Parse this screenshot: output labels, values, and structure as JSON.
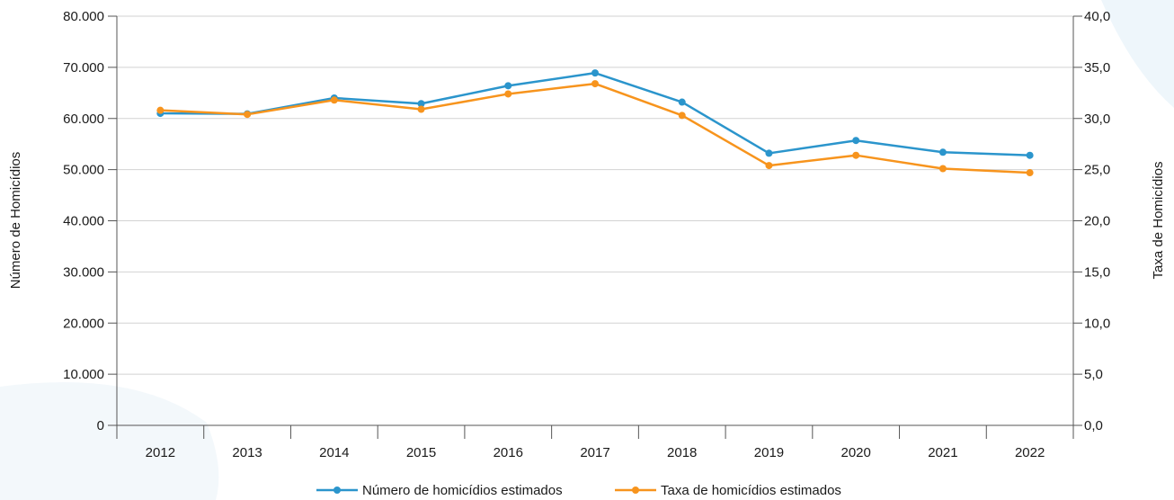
{
  "chart_data": {
    "type": "line",
    "categories": [
      "2012",
      "2013",
      "2014",
      "2015",
      "2016",
      "2017",
      "2018",
      "2019",
      "2020",
      "2021",
      "2022"
    ],
    "y_left": {
      "label": "Número de Homicídios",
      "range": [
        0,
        80000
      ],
      "ticks": [
        "0",
        "10.000",
        "20.000",
        "30.000",
        "40.000",
        "50.000",
        "60.000",
        "70.000",
        "80.000"
      ]
    },
    "y_right": {
      "label": "Taxa de Homicídios",
      "range": [
        0,
        40
      ],
      "ticks": [
        "0,0",
        "5,0",
        "10,0",
        "15,0",
        "20,0",
        "25,0",
        "30,0",
        "35,0",
        "40,0"
      ]
    },
    "series": [
      {
        "name": "Número de homicídios estimados",
        "axis": "left",
        "color": "#2b95cc",
        "values": [
          61000,
          60900,
          64000,
          62900,
          66400,
          68900,
          63200,
          53200,
          55700,
          53400,
          52800
        ]
      },
      {
        "name": "Taxa de homicídios estimados",
        "axis": "right",
        "color": "#f7941d",
        "values": [
          30.8,
          30.4,
          31.8,
          30.9,
          32.4,
          33.4,
          30.3,
          25.4,
          26.4,
          25.1,
          24.7
        ]
      }
    ],
    "grid": "horizontal",
    "legend_position": "bottom-center"
  }
}
